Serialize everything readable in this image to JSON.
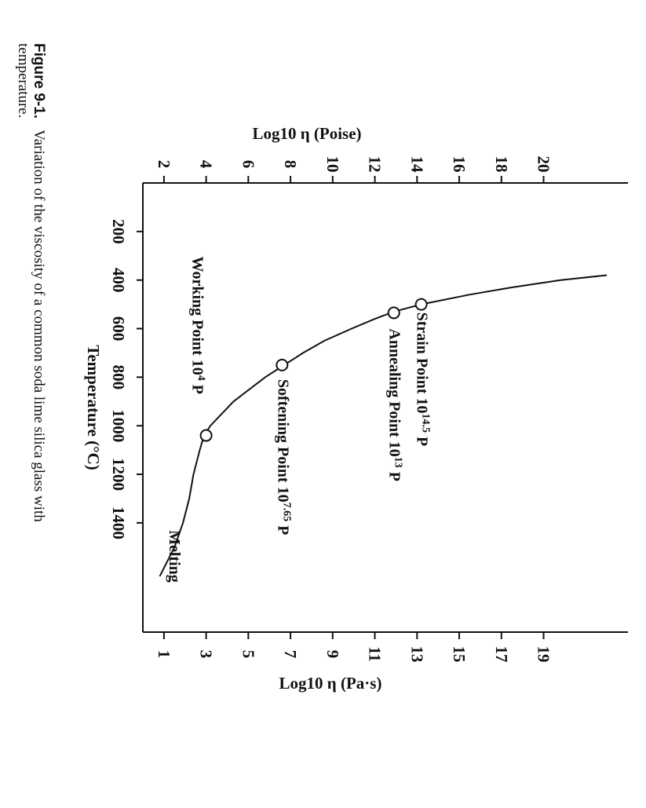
{
  "caption": {
    "number": "Figure 9-1.",
    "text_line1": "Variation of the viscosity of a common soda lime silica glass with",
    "text_line2": "temperature."
  },
  "chart_data": {
    "type": "line",
    "title": "",
    "xlabel": "Temperature (°C)",
    "ylabel_left": "Log10 η (Pa·s)",
    "ylabel_right": "Log10 η (Poise)",
    "xlim": [
      0,
      1850
    ],
    "ylim": [
      0,
      23
    ],
    "x_ticks": [
      200,
      400,
      600,
      800,
      1000,
      1200,
      1400
    ],
    "y_ticks_pas": [
      1,
      3,
      5,
      7,
      9,
      11,
      13,
      15,
      17,
      19
    ],
    "y_ticks_poise": [
      2,
      4,
      6,
      8,
      10,
      12,
      14,
      16,
      18,
      20
    ],
    "series": [
      {
        "x": [
          1620,
          1500,
          1400,
          1300,
          1200,
          1100,
          1040,
          1000,
          900,
          800,
          750,
          700,
          650,
          600,
          560,
          530,
          500,
          460,
          430,
          400,
          380
        ],
        "y": [
          0.8,
          1.5,
          1.9,
          2.2,
          2.4,
          2.7,
          2.9,
          3.2,
          4.3,
          5.8,
          6.7,
          7.6,
          8.6,
          9.9,
          11.0,
          11.9,
          13.2,
          15.5,
          17.5,
          19.8,
          22.0
        ]
      }
    ],
    "points": [
      {
        "name": "Strain Point",
        "exp": "14.5",
        "unit": "P",
        "x": 500,
        "y": 13.2
      },
      {
        "name": "Annealing Point",
        "exp": "13",
        "unit": "P",
        "x": 535,
        "y": 11.9
      },
      {
        "name": "Softening Point",
        "exp": "7.65",
        "unit": "P",
        "x": 750,
        "y": 6.6
      },
      {
        "name": "Working Point",
        "exp": "4",
        "unit": "P",
        "x": 1040,
        "y": 3.0
      }
    ],
    "annotations": [
      {
        "text": "Melting"
      }
    ]
  }
}
